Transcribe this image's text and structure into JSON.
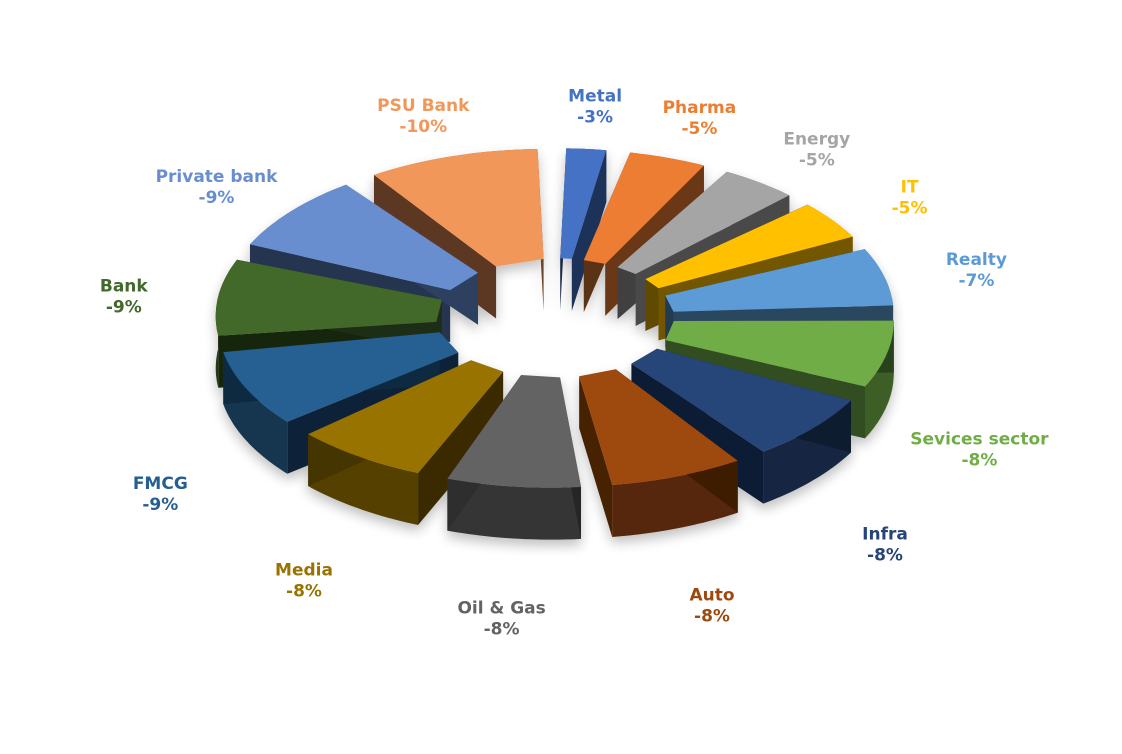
{
  "chart_data": {
    "type": "pie",
    "title": "",
    "style": "3d-exploded",
    "categories": [
      "Metal",
      "Pharma",
      "Energy",
      "IT",
      "Realty",
      "Sevices sector",
      "Infra",
      "Auto",
      "Oil & Gas",
      "Media",
      "FMCG",
      "Bank",
      "Private bank",
      "PSU Bank"
    ],
    "values": [
      -3,
      -5,
      -5,
      -5,
      -7,
      -8,
      -8,
      -8,
      -8,
      -8,
      -9,
      -9,
      -9,
      -10
    ],
    "value_labels": [
      "-3%",
      "-5%",
      "-5%",
      "-5%",
      "-7%",
      "-8%",
      "-8%",
      "-8%",
      "-8%",
      "-8%",
      "-9%",
      "-9%",
      "-9%",
      "-10%"
    ],
    "colors": [
      "#4472c4",
      "#ed7d31",
      "#a5a5a5",
      "#ffc000",
      "#5b9bd5",
      "#70ad47",
      "#264478",
      "#9e480e",
      "#636363",
      "#997300",
      "#255e91",
      "#43682b",
      "#698ed0",
      "#f1975a"
    ],
    "legend": "none"
  }
}
